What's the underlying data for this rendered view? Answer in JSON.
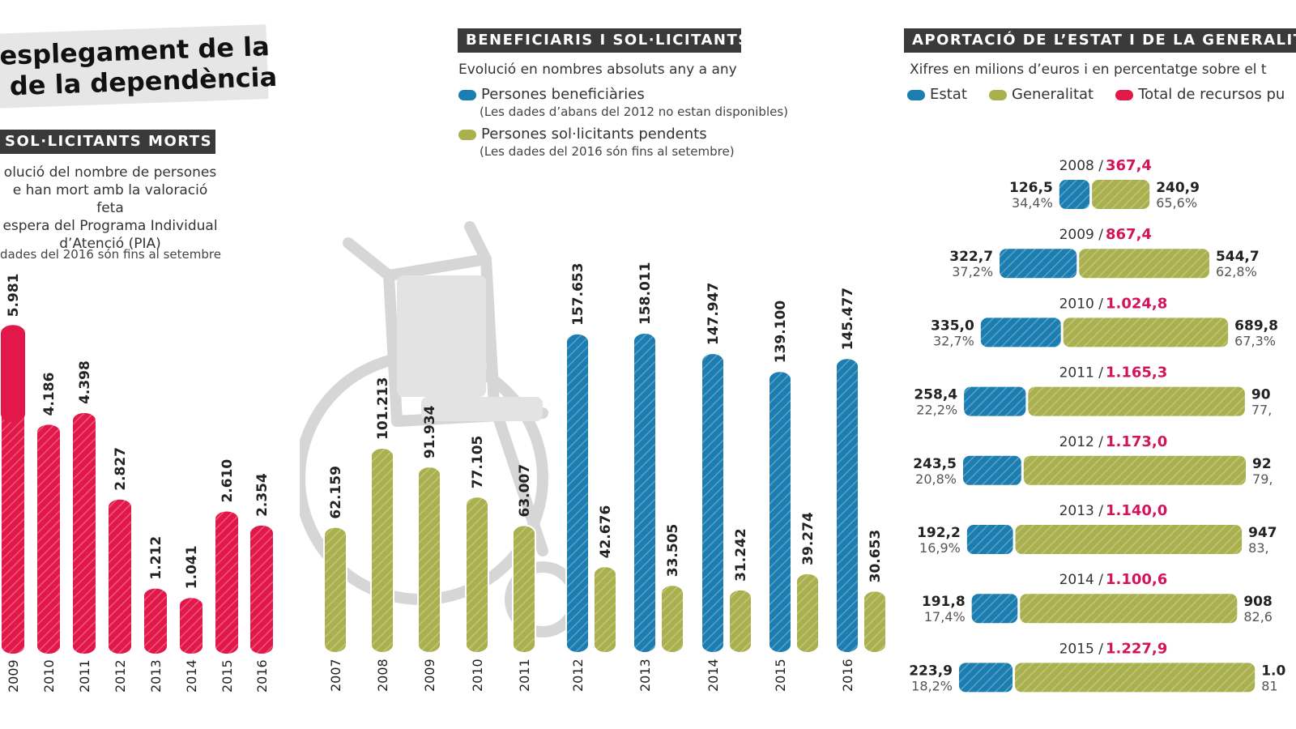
{
  "page_title": "esplegament de la\n de la dependència",
  "colors": {
    "red": "#e3184a",
    "blue": "#1c7db0",
    "olive": "#a9b04d",
    "magenta": "#d4145a",
    "dark": "#3a3a3a"
  },
  "left_panel": {
    "header": "SOL·LICITANTS MORTS",
    "desc_lines": [
      "olució del nombre de persones",
      "e han mort amb la valoració feta",
      "espera del Programa Individual",
      "d’Atenció (PIA)"
    ],
    "note": "dades del 2016 són fins al setembre"
  },
  "middle_panel": {
    "header": "BENEFICIARIS I SOL·LICITANTS",
    "subtitle": "Evolució en nombres absoluts any a any",
    "legend": [
      {
        "label": "Persones beneficiàries",
        "note": "(Les dades d’abans del 2012 no estan disponibles)",
        "color": "blue"
      },
      {
        "label": "Persones sol·licitants pendents",
        "note": "(Les dades del 2016 són fins al setembre)",
        "color": "olive"
      }
    ]
  },
  "right_panel": {
    "header": "APORTACIÓ DE L’ESTAT I DE LA GENERALIT",
    "subtitle": "Xifres en milions d’euros i en percentatge sobre el t",
    "legend": [
      {
        "label": "Estat",
        "color": "blue"
      },
      {
        "label": "Generalitat",
        "color": "olive"
      },
      {
        "label": "Total de recursos pu",
        "color": "magenta"
      }
    ]
  },
  "chart_data": [
    {
      "type": "bar",
      "title": "SOL·LICITANTS MORTS",
      "categories": [
        "2009",
        "2010",
        "2011",
        "2012",
        "2013",
        "2014",
        "2015",
        "2016"
      ],
      "values": [
        5981,
        4186,
        4398,
        2827,
        1212,
        1041,
        2610,
        2354
      ],
      "value_labels": [
        "5.981",
        "4.186",
        "4.398",
        "2.827",
        "1.212",
        "1.041",
        "2.610",
        "2.354"
      ],
      "ylim": [
        0,
        6000
      ]
    },
    {
      "type": "bar",
      "title": "BENEFICIARIS I SOL·LICITANTS",
      "categories": [
        "2007",
        "2008",
        "2009",
        "2010",
        "2011",
        "2012",
        "2013",
        "2014",
        "2015",
        "2016"
      ],
      "series": [
        {
          "name": "Persones beneficiàries",
          "values": [
            null,
            null,
            null,
            null,
            null,
            157653,
            158011,
            147947,
            139100,
            145477
          ],
          "value_labels": [
            null,
            null,
            null,
            null,
            null,
            "157.653",
            "158.011",
            "147.947",
            "139.100",
            "145.477"
          ]
        },
        {
          "name": "Persones sol·licitants pendents",
          "values": [
            62159,
            101213,
            91934,
            77105,
            63007,
            42676,
            33505,
            31242,
            39274,
            30653
          ],
          "value_labels": [
            "62.159",
            "101.213",
            "91.934",
            "77.105",
            "63.007",
            "42.676",
            "33.505",
            "31.242",
            "39.274",
            "30.653"
          ]
        }
      ],
      "ylim": [
        0,
        160000
      ]
    },
    {
      "type": "bar",
      "title": "APORTACIÓ DE L’ESTAT I DE LA GENERALIT",
      "orientation": "horizontal-stacked",
      "rows": [
        {
          "year": "2008",
          "total": "367,4",
          "estat": 126.5,
          "estat_label": "126,5",
          "estat_pct": "34,4%",
          "gen": 240.9,
          "gen_label": "240,9",
          "gen_pct": "65,6%"
        },
        {
          "year": "2009",
          "total": "867,4",
          "estat": 322.7,
          "estat_label": "322,7",
          "estat_pct": "37,2%",
          "gen": 544.7,
          "gen_label": "544,7",
          "gen_pct": "62,8%"
        },
        {
          "year": "2010",
          "total": "1.024,8",
          "estat": 335.0,
          "estat_label": "335,0",
          "estat_pct": "32,7%",
          "gen": 689.8,
          "gen_label": "689,8",
          "gen_pct": "67,3%"
        },
        {
          "year": "2011",
          "total": "1.165,3",
          "estat": 258.4,
          "estat_label": "258,4",
          "estat_pct": "22,2%",
          "gen": 906.9,
          "gen_label": "90",
          "gen_pct": "77,"
        },
        {
          "year": "2012",
          "total": "1.173,0",
          "estat": 243.5,
          "estat_label": "243,5",
          "estat_pct": "20,8%",
          "gen": 929.5,
          "gen_label": "92",
          "gen_pct": "79,"
        },
        {
          "year": "2013",
          "total": "1.140,0",
          "estat": 192.2,
          "estat_label": "192,2",
          "estat_pct": "16,9%",
          "gen": 947.8,
          "gen_label": "947",
          "gen_pct": "83,"
        },
        {
          "year": "2014",
          "total": "1.100,6",
          "estat": 191.8,
          "estat_label": "191,8",
          "estat_pct": "17,4%",
          "gen": 908.8,
          "gen_label": "908",
          "gen_pct": "82,6"
        },
        {
          "year": "2015",
          "total": "1.227,9",
          "estat": 223.9,
          "estat_label": "223,9",
          "estat_pct": "18,2%",
          "gen": 1004.0,
          "gen_label": "1.0",
          "gen_pct": "81"
        }
      ]
    }
  ]
}
